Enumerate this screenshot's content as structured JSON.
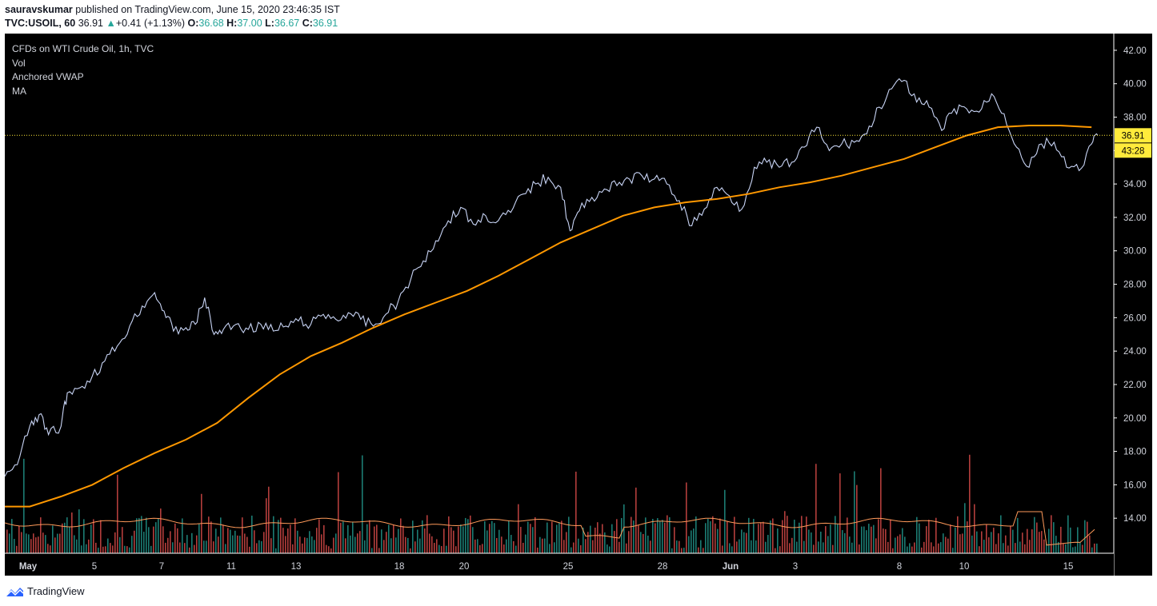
{
  "header": {
    "author": "sauravskumar",
    "published_text": "published on TradingView.com, June 15, 2020 23:46:35 IST",
    "symbol": "TVC:USOIL, 60",
    "last": "36.91",
    "change_arrow": "▲",
    "change": "+0.41 (+1.13%)",
    "o_label": "O:",
    "o_value": "36.68",
    "h_label": "H:",
    "h_value": "37.00",
    "l_label": "L:",
    "l_value": "36.67",
    "c_label": "C:",
    "c_value": "36.91"
  },
  "legend": {
    "title": "CFDs on WTI Crude Oil, 1h, TVC",
    "vol": "Vol",
    "vwap": "Anchored VWAP",
    "ma": "MA"
  },
  "footer": {
    "brand": "TradingView"
  },
  "colors": {
    "background": "#000000",
    "price_line": "#c8d4f5",
    "vwap": "#ff9800",
    "volume_up": "#26a69a",
    "volume_down": "#ef5350",
    "volume_ma": "#ff9a5a",
    "last_price_label": "#ffeb3b",
    "axis_text": "#d1d4dc"
  },
  "chart_data": {
    "type": "line",
    "title": "CFDs on WTI Crude Oil, 1h, TVC",
    "ylim": [
      12,
      43
    ],
    "y_ticks": [
      "42.00",
      "40.00",
      "38.00",
      "36.00",
      "34.00",
      "32.00",
      "30.00",
      "28.00",
      "26.00",
      "24.00",
      "22.00",
      "20.00",
      "18.00",
      "16.00",
      "14.00"
    ],
    "x_ticks": [
      {
        "label": "May",
        "x": 1
      },
      {
        "label": "5",
        "x": 5
      },
      {
        "label": "7",
        "x": 7
      },
      {
        "label": "11",
        "x": 9
      },
      {
        "label": "13",
        "x": 11
      },
      {
        "label": "18",
        "x": 14
      },
      {
        "label": "20",
        "x": 16
      },
      {
        "label": "25",
        "x": 19
      },
      {
        "label": "28",
        "x": 22
      },
      {
        "label": "Jun",
        "x": 24
      },
      {
        "label": "3",
        "x": 26
      },
      {
        "label": "8",
        "x": 29
      },
      {
        "label": "10",
        "x": 31
      },
      {
        "label": "15",
        "x": 34
      }
    ],
    "price_label": "36.91",
    "countdown_label": "43:28",
    "last_price": 36.91,
    "x_range": [
      0.2,
      35.2
    ],
    "series": [
      {
        "name": "USOIL",
        "points": [
          [
            0.2,
            16.5
          ],
          [
            0.6,
            17.2
          ],
          [
            1.0,
            19.5
          ],
          [
            1.3,
            20.2
          ],
          [
            1.6,
            19.0
          ],
          [
            2.0,
            19.5
          ],
          [
            2.2,
            21.5
          ],
          [
            2.6,
            21.8
          ],
          [
            3.0,
            22.5
          ],
          [
            3.4,
            23.4
          ],
          [
            3.8,
            24.3
          ],
          [
            4.2,
            25.5
          ],
          [
            4.6,
            26.7
          ],
          [
            5.0,
            27.5
          ],
          [
            5.3,
            26.4
          ],
          [
            5.6,
            25.2
          ],
          [
            6.0,
            25.4
          ],
          [
            6.3,
            25.6
          ],
          [
            6.6,
            27.2
          ],
          [
            6.9,
            25.0
          ],
          [
            7.2,
            25.3
          ],
          [
            7.6,
            25.6
          ],
          [
            8.0,
            25.3
          ],
          [
            8.4,
            25.6
          ],
          [
            8.8,
            25.2
          ],
          [
            9.2,
            25.5
          ],
          [
            9.6,
            25.8
          ],
          [
            10.0,
            25.6
          ],
          [
            10.4,
            26.2
          ],
          [
            10.8,
            25.9
          ],
          [
            11.2,
            26.3
          ],
          [
            11.6,
            25.9
          ],
          [
            12.0,
            25.5
          ],
          [
            12.4,
            26.2
          ],
          [
            12.8,
            27.0
          ],
          [
            13.2,
            28.3
          ],
          [
            13.6,
            29.4
          ],
          [
            14.0,
            30.6
          ],
          [
            14.4,
            31.8
          ],
          [
            14.8,
            32.6
          ],
          [
            15.2,
            31.6
          ],
          [
            15.6,
            32.1
          ],
          [
            16.0,
            31.8
          ],
          [
            16.4,
            32.3
          ],
          [
            16.8,
            33.4
          ],
          [
            17.2,
            34.0
          ],
          [
            17.6,
            34.4
          ],
          [
            18.0,
            33.8
          ],
          [
            18.3,
            31.2
          ],
          [
            18.6,
            32.4
          ],
          [
            19.0,
            33.2
          ],
          [
            19.4,
            33.7
          ],
          [
            19.8,
            33.9
          ],
          [
            20.2,
            34.3
          ],
          [
            20.6,
            34.5
          ],
          [
            21.0,
            34.3
          ],
          [
            21.4,
            34.0
          ],
          [
            21.8,
            33.0
          ],
          [
            22.2,
            31.5
          ],
          [
            22.6,
            32.5
          ],
          [
            23.0,
            33.8
          ],
          [
            23.4,
            33.3
          ],
          [
            23.8,
            32.5
          ],
          [
            24.2,
            35.0
          ],
          [
            24.6,
            35.3
          ],
          [
            25.0,
            35.0
          ],
          [
            25.4,
            35.3
          ],
          [
            25.8,
            36.2
          ],
          [
            26.2,
            37.4
          ],
          [
            26.6,
            36.0
          ],
          [
            27.0,
            36.4
          ],
          [
            27.4,
            36.5
          ],
          [
            27.8,
            37.0
          ],
          [
            28.2,
            38.6
          ],
          [
            28.6,
            39.7
          ],
          [
            29.0,
            40.2
          ],
          [
            29.4,
            38.9
          ],
          [
            29.8,
            38.6
          ],
          [
            30.2,
            37.2
          ],
          [
            30.6,
            38.5
          ],
          [
            31.0,
            38.5
          ],
          [
            31.4,
            38.3
          ],
          [
            31.8,
            39.4
          ],
          [
            32.2,
            38.2
          ],
          [
            32.6,
            36.2
          ],
          [
            33.0,
            35.0
          ],
          [
            33.4,
            36.4
          ],
          [
            33.8,
            36.5
          ],
          [
            34.2,
            35.0
          ],
          [
            34.6,
            34.8
          ],
          [
            35.0,
            36.4
          ],
          [
            35.2,
            36.91
          ]
        ]
      },
      {
        "name": "Anchored VWAP",
        "points": [
          [
            0.2,
            14.7
          ],
          [
            1.0,
            14.7
          ],
          [
            1.5,
            15.0
          ],
          [
            2.0,
            15.3
          ],
          [
            3.0,
            16.0
          ],
          [
            4.0,
            17.0
          ],
          [
            5.0,
            17.9
          ],
          [
            6.0,
            18.7
          ],
          [
            7.0,
            19.7
          ],
          [
            8.0,
            21.2
          ],
          [
            9.0,
            22.6
          ],
          [
            10.0,
            23.7
          ],
          [
            11.0,
            24.5
          ],
          [
            12.0,
            25.4
          ],
          [
            13.0,
            26.2
          ],
          [
            14.0,
            26.9
          ],
          [
            15.0,
            27.6
          ],
          [
            16.0,
            28.5
          ],
          [
            17.0,
            29.5
          ],
          [
            18.0,
            30.5
          ],
          [
            19.0,
            31.3
          ],
          [
            20.0,
            32.1
          ],
          [
            21.0,
            32.6
          ],
          [
            22.0,
            32.9
          ],
          [
            23.0,
            33.1
          ],
          [
            24.0,
            33.4
          ],
          [
            25.0,
            33.8
          ],
          [
            26.0,
            34.1
          ],
          [
            27.0,
            34.5
          ],
          [
            28.0,
            35.0
          ],
          [
            29.0,
            35.5
          ],
          [
            30.0,
            36.2
          ],
          [
            31.0,
            36.9
          ],
          [
            32.0,
            37.4
          ],
          [
            33.0,
            37.5
          ],
          [
            34.0,
            37.5
          ],
          [
            35.0,
            37.4
          ]
        ]
      }
    ]
  }
}
